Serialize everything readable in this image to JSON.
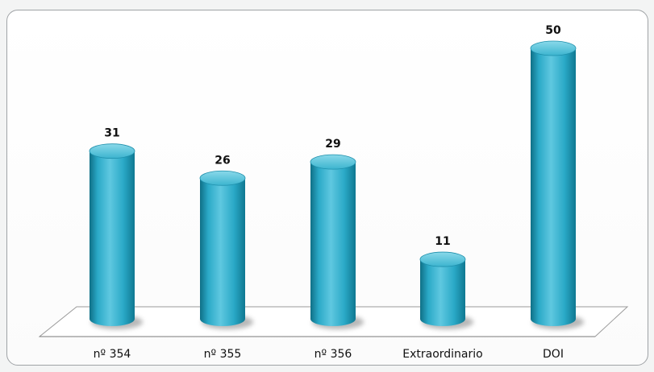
{
  "chart_data": {
    "type": "bar",
    "style": "3d-cylinder",
    "categories": [
      "nº 354",
      "nº 355",
      "nº 356",
      "Extraordinario",
      "DOI"
    ],
    "values": [
      31,
      26,
      29,
      11,
      50
    ],
    "data_labels": [
      "31",
      "26",
      "29",
      "11",
      "50"
    ],
    "title": "",
    "xlabel": "",
    "ylabel": "",
    "ylim": [
      0,
      50
    ],
    "grid": false,
    "legend": "none",
    "colors": {
      "bar": "#2aa9c7",
      "bar_dark": "#0f6f86",
      "bar_light": "#7fd4e6",
      "floor": "#ffffff",
      "floor_edge": "#9a9a9a",
      "border": "#9fa3a6"
    }
  }
}
